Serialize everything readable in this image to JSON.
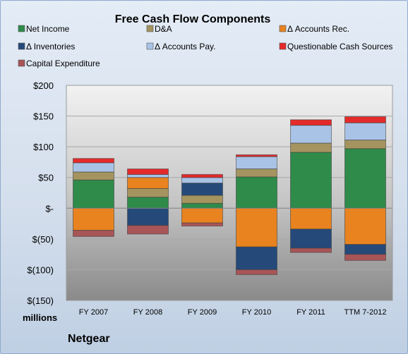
{
  "chart_data": {
    "type": "bar",
    "stacked": true,
    "title": "Free Cash Flow Components",
    "unit_label": "millions",
    "company": "Netgear",
    "categories": [
      "FY 2007",
      "FY 2008",
      "FY 2009",
      "FY 2010",
      "FY 2011",
      "TTM 7-2012"
    ],
    "ylim": [
      -150,
      200
    ],
    "yticks": [
      -150,
      -100,
      -50,
      0,
      50,
      100,
      150,
      200
    ],
    "ytick_labels": [
      "$(150)",
      "$(100)",
      "$(50)",
      "$-",
      "$50",
      "$100",
      "$150",
      "$200"
    ],
    "grid": true,
    "legend_position": "top",
    "series": [
      {
        "name": "Net Income",
        "color": "#2e8b4a",
        "values": [
          46,
          18,
          8,
          51,
          91,
          97
        ]
      },
      {
        "name": "D&A",
        "color": "#a59460",
        "values": [
          13,
          14,
          13,
          13,
          15,
          14
        ]
      },
      {
        "name": "Δ Accounts Rec.",
        "color": "#e8831f",
        "values": [
          -36,
          18,
          -24,
          -63,
          -34,
          -59
        ]
      },
      {
        "name": "Δ Inventories",
        "color": "#254a7a",
        "values": [
          0,
          -28,
          20,
          -37,
          -31,
          -16
        ]
      },
      {
        "name": "Δ Accounts Pay.",
        "color": "#a9c3e6",
        "values": [
          15,
          5,
          9,
          20,
          29,
          28
        ]
      },
      {
        "name": "Questionable Cash Sources",
        "color": "#e52a2a",
        "values": [
          7,
          9,
          5,
          3,
          9,
          10
        ]
      },
      {
        "name": "Capital Expenditure",
        "color": "#a85558",
        "values": [
          -10,
          -14,
          -5,
          -8,
          -7,
          -10
        ]
      }
    ]
  }
}
